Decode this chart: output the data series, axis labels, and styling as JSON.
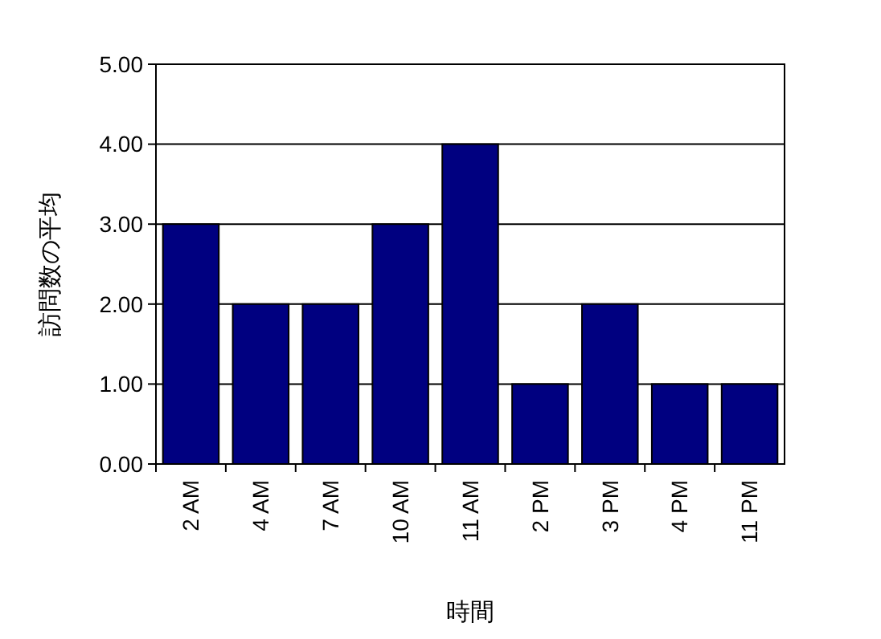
{
  "chart_data": {
    "type": "bar",
    "xlabel": "時間",
    "ylabel": "訪問数の平均",
    "categories": [
      "2 AM",
      "4 AM",
      "7 AM",
      "10 AM",
      "11 AM",
      "2 PM",
      "3 PM",
      "4 PM",
      "11 PM"
    ],
    "values": [
      3,
      2,
      2,
      3,
      4,
      1,
      2,
      1,
      1
    ],
    "color": "#000080",
    "ylim": [
      0,
      5
    ],
    "yticks": [
      {
        "value": 0,
        "label": "0.00"
      },
      {
        "value": 1,
        "label": "1.00"
      },
      {
        "value": 2,
        "label": "2.00"
      },
      {
        "value": 3,
        "label": "3.00"
      },
      {
        "value": 4,
        "label": "4.00"
      },
      {
        "value": 5,
        "label": "5.00"
      }
    ],
    "grid": "y"
  }
}
